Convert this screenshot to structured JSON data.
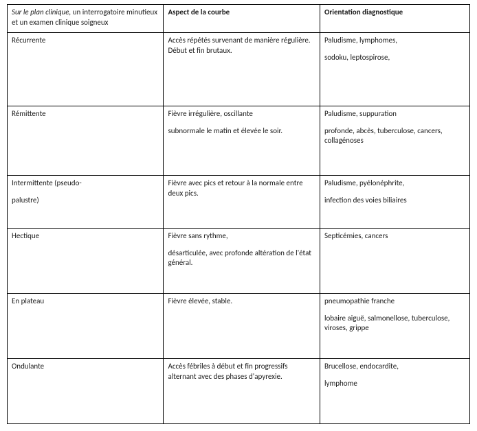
{
  "header": {
    "cell1_italic": "Sur le plan clinique,",
    "cell1_rest": " un interrogatoire minutieux et un examen clinique soigneux",
    "col2": "Aspect de la courbe",
    "col3": "Orientation diagnostique"
  },
  "rows": {
    "r1": {
      "name": "Récurrente",
      "aspect": "Accès répétés survenant de manière régulière. Début et fin brutaux.",
      "diag_line1": "Paludisme, lymphomes,",
      "diag_line2": "sodoku, leptospirose,"
    },
    "r2": {
      "name": "Rémittente",
      "aspect_line1": "Fièvre irrégulière, oscillante",
      "aspect_line2": "subnormale le matin et élevée le soir.",
      "diag_line1": "Paludisme, suppuration",
      "diag_line2": "profonde, abcès, tuberculose, cancers, collagénoses"
    },
    "r3": {
      "name_line1": "Intermittente (pseudo-",
      "name_line2": "palustre)",
      "aspect": "Fièvre avec pics et retour à la normale entre deux pics.",
      "diag_line1": "Paludisme, pyélonéphrite,",
      "diag_line2": "infection des voies biliaires"
    },
    "r4": {
      "name": "Hectique",
      "aspect_line1": "Fièvre sans rythme,",
      "aspect_line2": "désarticulée, avec profonde altération de l'état général.",
      "diag": "Septicémies, cancers"
    },
    "r5": {
      "name": "En plateau",
      "aspect": "Fièvre élevée, stable.",
      "diag_line1": "pneumopathie franche",
      "diag_line2": "lobaire aiguë, salmonellose, tuberculose, viroses, grippe"
    },
    "r6": {
      "name": "Ondulante",
      "aspect": "Accès fébriles à début et fin progressifs alternant avec des phases d'apyrexie.",
      "diag_line1": "Brucellose, endocardite,",
      "diag_line2": "lymphome"
    }
  }
}
